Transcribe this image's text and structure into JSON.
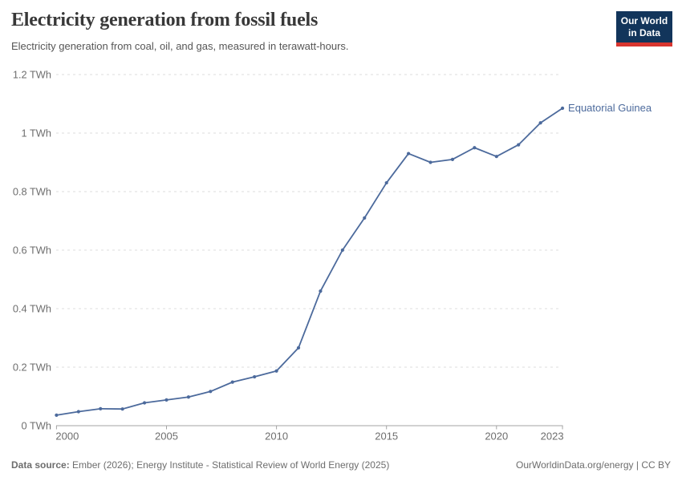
{
  "header": {
    "title": "Electricity generation from fossil fuels",
    "subtitle": "Electricity generation from coal, oil, and gas, measured in terawatt-hours.",
    "logo": {
      "line1": "Our World",
      "line2": "in Data",
      "bg_color": "#12355b",
      "accent_color": "#d8352f"
    }
  },
  "chart_data": {
    "type": "line",
    "title": "Electricity generation from fossil fuels",
    "subtitle": "Electricity generation from coal, oil, and gas, measured in terawatt-hours.",
    "xlabel": "",
    "ylabel": "TWh",
    "xlim": [
      2000,
      2023
    ],
    "ylim": [
      0,
      1.2
    ],
    "grid": "horizontal-dashed",
    "legend_position": "end-of-line-label",
    "series": [
      {
        "name": "Equatorial Guinea",
        "color": "#4c6a9c",
        "x": [
          2000,
          2001,
          2002,
          2003,
          2004,
          2005,
          2006,
          2007,
          2008,
          2009,
          2010,
          2011,
          2012,
          2013,
          2014,
          2015,
          2016,
          2017,
          2018,
          2019,
          2020,
          2021,
          2022,
          2023
        ],
        "values": [
          0.036,
          0.048,
          0.058,
          0.057,
          0.078,
          0.088,
          0.098,
          0.117,
          0.149,
          0.167,
          0.187,
          0.266,
          0.46,
          0.6,
          0.71,
          0.83,
          0.93,
          0.9,
          0.91,
          0.95,
          0.92,
          0.96,
          1.035,
          1.085
        ]
      }
    ],
    "x_ticks": [
      {
        "value": 2000,
        "label": "2000"
      },
      {
        "value": 2005,
        "label": "2005"
      },
      {
        "value": 2010,
        "label": "2010"
      },
      {
        "value": 2015,
        "label": "2015"
      },
      {
        "value": 2020,
        "label": "2020"
      },
      {
        "value": 2023,
        "label": "2023"
      }
    ],
    "y_ticks": [
      {
        "value": 0,
        "label": "0 TWh"
      },
      {
        "value": 0.2,
        "label": "0.2 TWh"
      },
      {
        "value": 0.4,
        "label": "0.4 TWh"
      },
      {
        "value": 0.6,
        "label": "0.6 TWh"
      },
      {
        "value": 0.8,
        "label": "0.8 TWh"
      },
      {
        "value": 1,
        "label": "1 TWh"
      },
      {
        "value": 1.2,
        "label": "1.2 TWh"
      }
    ],
    "entity_label": "Equatorial Guinea",
    "colors": {
      "line": "#4c6a9c",
      "gridline": "#dcdcdc",
      "axis": "#a3a3a3",
      "tick_text": "#6e6e6e"
    }
  },
  "footer": {
    "source_label": "Data source:",
    "source_text": " Ember (2026); Energy Institute - Statistical Review of World Energy (2025)",
    "rights": "OurWorldinData.org/energy | CC BY"
  }
}
